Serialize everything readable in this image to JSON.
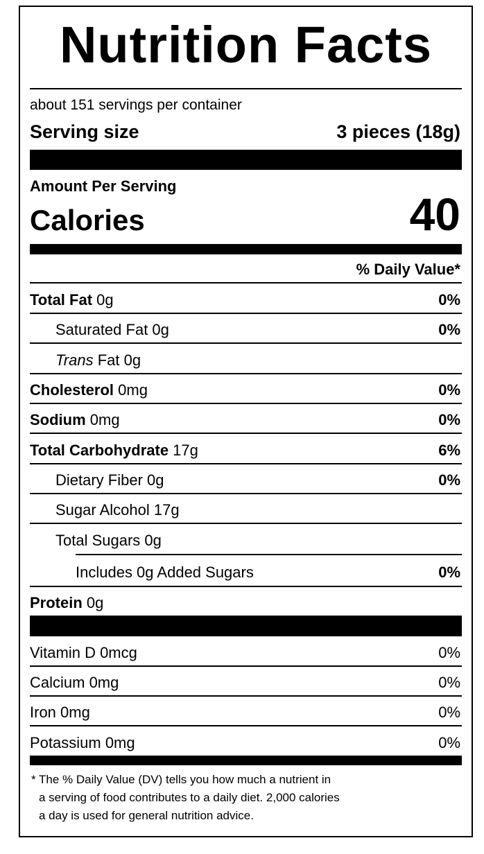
{
  "title": "Nutrition Facts",
  "servings_per_container": "about 151 servings per container",
  "serving_size": {
    "label": "Serving size",
    "value": "3 pieces (18g)"
  },
  "amount_per_serving": "Amount Per Serving",
  "calories": {
    "label": "Calories",
    "value": "40"
  },
  "dv_header": "% Daily Value*",
  "nutrients": {
    "total_fat": {
      "name": "Total Fat",
      "amount": " 0g",
      "dv": "0%"
    },
    "saturated_fat": {
      "name": "Saturated Fat 0g",
      "dv": "0%"
    },
    "trans_fat": {
      "prefix": "Trans",
      "rest": " Fat 0g"
    },
    "cholesterol": {
      "name": "Cholesterol",
      "amount": " 0mg",
      "dv": "0%"
    },
    "sodium": {
      "name": "Sodium",
      "amount": " 0mg",
      "dv": "0%"
    },
    "total_carbohydrate": {
      "name": "Total Carbohydrate",
      "amount": " 17g",
      "dv": "6%"
    },
    "dietary_fiber": {
      "name": "Dietary Fiber 0g",
      "dv": "0%"
    },
    "sugar_alcohol": {
      "name": "Sugar Alcohol 17g"
    },
    "total_sugars": {
      "name": "Total Sugars 0g"
    },
    "added_sugars": {
      "name": "Includes 0g Added Sugars",
      "dv": "0%"
    },
    "protein": {
      "name": "Protein",
      "amount": " 0g"
    }
  },
  "vitamins": [
    {
      "name": "Vitamin D 0mcg",
      "dv": "0%"
    },
    {
      "name": "Calcium 0mg",
      "dv": "0%"
    },
    {
      "name": "Iron 0mg",
      "dv": "0%"
    },
    {
      "name": "Potassium 0mg",
      "dv": "0%"
    }
  ],
  "footnote": [
    "* The % Daily Value (DV) tells you how much a nutrient in",
    "a serving of food contributes to a daily diet. 2,000 calories",
    "a day is used for general nutrition advice."
  ]
}
